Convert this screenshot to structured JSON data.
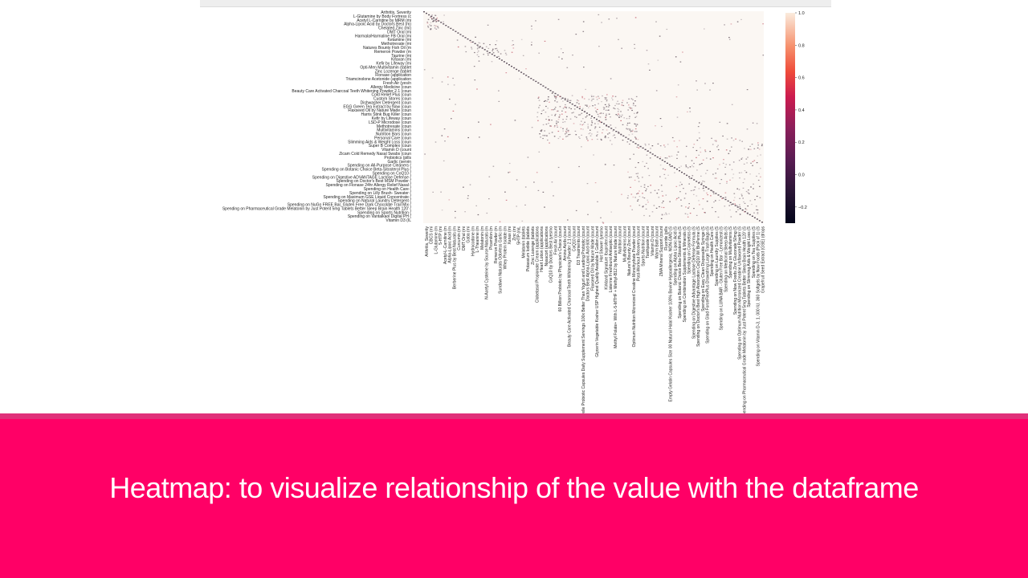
{
  "caption": {
    "text": "Heatmap: to visualize relationship of the value with the dataframe"
  },
  "colors": {
    "caption_band": "#ff0066",
    "caption_stripe": "#e0317a",
    "caption_text": "#ffffff"
  },
  "chart_data": {
    "type": "heatmap",
    "title": "",
    "colormap": "rocket",
    "colorbar": {
      "min": -0.3,
      "max": 1.0,
      "ticks": [
        "1.0",
        "0.8",
        "0.6",
        "0.4",
        "0.2",
        "0.0",
        "−0.2"
      ]
    },
    "row_labels": [
      "Arthritis, Severity",
      "L-Glutamine by Body Fortress (c",
      "Acetyl L-Carnitine by MRM (mi",
      "Alpha-Lipoic Acid by Doctors Best (m)",
      "Chelated Zinc (mi)",
      "DMT Oral (mi",
      "Harmala/Harmaline FB Oral (mi",
      "Ketamine (mi",
      "Methotrexate (mi",
      "Natures Bounty Fish Oil (m",
      "Remeron Powder (m",
      "Taurine (mi",
      "Kifaxan (mi",
      "Kefir by Lifeway (mi",
      "Opti-Men Multivitamin (tablet",
      "Zinc Lozenge (tablet",
      "Flonase (application",
      "Triamcinolone Acetonide (application",
      "Fresh Air (yes/n",
      "Allergy Medicine (coun",
      "Beauty Care Activated Charcoal Teeth Whitening Powder 2.1 (coun",
      "Cold Relief Plus (coun",
      "Custom Stores (coun",
      "Dishwasher Detergent (coun",
      "EGG Green Tea Extract by Now (coun",
      "Flaxseed Oil by Nature Made (coun",
      "Harris Stink Bug Killer (coun",
      "Kefir by Lifeway (coun",
      "LSD-P Microdose (coun",
      "Methotrexate (coun",
      "Multivitamins (coun",
      "Nutrition Bars (coun",
      "Personal Care (coun",
      "Slimming Aids & Weight Loss (coun",
      "Super B Complex (coun",
      "Vitamin D (count",
      "Zicam Cold Remedy Nasal Swabs (coun",
      "Probiotics (pills",
      "Garlic (servin",
      "Spending on All-Purpose Cleaners (",
      "Spending on Botanic Choice Beta-Sitosterol Plus (",
      "Spending on CoQ10 (",
      "Spending on Digestive ADVANTAGE Lactose Defense (",
      "Spending on Doctor's Best MSM Powder (",
      "Spending on Flonase 24hr Allergy Relief Nasal (",
      "Spending on Health Care (",
      "Spending on Lilly Brush- Sweater (",
      "Spending on Maximum GSE Liquid Concentrate (",
      "Spending on Natural Laundry Detergent (",
      "Spending on NuGo FREE Bar, Gluten Free Dark Chocolate Trail Mix (",
      "Spending on Pharmaceutical Grade Melatonin by Just Potent 5mg Tablets Better Sleep Brain Health 120' (",
      "Spending on Sports Nutrition (",
      "Spending on Vantalkaol Digital PH (",
      "Vitamin D3 (IL"
    ],
    "col_labels": [
      "Arthritis, Severity",
      "CBCS (mi",
      "L-Glutamine (m",
      "5-HTP (mi",
      "Acetyl-L-Carnitine (m",
      "Alpha-Lipoic Acid (m",
      "Berberine Plus by Best Naturals (m",
      "Curcumin (mi",
      "DMT Oral (mi",
      "Gaba (mi",
      "Hydrocodone (m",
      "L-Theanine (m",
      "Melatonin (m",
      "N-Acetyl Cysteine by Source Naturals (m",
      "Picamilon (m",
      "Remeron Powder (m",
      "Sundown Naturals Odorless Garlic (m",
      "Whey Protein Isolate (m",
      "Xanax (mi",
      "Zinc (mi",
      "5HTP (mL",
      "Melatonin (tablets",
      "Potassium Iodide (tablets",
      "Zinc Lozenge (tablets",
      "Clobetasol Propionate Cream (applications",
      "Heart Lotion (applications",
      "Nasacort (applications",
      "CoQ10 by Doctors Best (yes/no",
      "Fresh Air (count",
      "60 Billion Probiotic by Physician's Choice (count",
      "Amino Acids (count",
      "Beauty Care Activated Charcoal Teeth Whitening Powder 2.1 (count",
      "CoQ10 (count",
      "D3 Treatments (count",
      "Culturelle Probiotic Capsules Daily Supplement Servings 100x Better Than Yogurt and Leading Probiotic (count",
      "Doctors Best Alpha-Lipoic Acid 600 (count",
      "Flaxseed Oil by Nature Made (count",
      "Glycerin Vegetable Kosher USP Highest Quality Available 1 Gallon (count",
      "Hot Shower (yes/no",
      "Kirkland Signature Ibuprofen (count",
      "Listerine Freshburst Antiseptic (count",
      "Methyl Folate+ With L-5-MTHF + Methyl-B12 by Nature Made (count",
      "Nutrition (count",
      "Multivitamins (count",
      "Nature's Bounty Zinc (count",
      "Optimum Nutrition Micronized Creatine Monohydrate Powder (count",
      "Post-Workout Recovery (count",
      "Sports Nutrition (count",
      "Toothpaste (count",
      "Vitamin D (count",
      "Warm Bath (count",
      "ZMA Mineral Support (count",
      "Fluoride (pills",
      "Empty Gelatin Capsules Size 00 Natural Halal Kosher 100% Bovine Hypoallergenic, NON-GMO (S",
      "Spending on Alpha Lipoic Acid (S",
      "Spending on Botanic Choice Beta-Sitosterol Plus (S",
      "Spending on Combination Supplements & Minerals (S",
      "Spending on Cosmetics (S",
      "Spending on Digestive Advantage Lactose Defense Formula (S",
      "Spending on Doctor's Best High Absorption CoQ10 W/ BioPerine (S",
      "Spending on Easy Clean Disposable Syringe (S",
      "Spending on Glad ForceFlexPlus Drawstring Large Trash Bags (S",
      "Spending on Health Care (S",
      "Spending on Laundry Supplies (S",
      "Spending on LUNA BAR - Gluten Free Bar - Lemonzest (S",
      "Spending on Medicinal Sleep Aids (S",
      "Spending on Multivitamins (S",
      "Spending on Now Foods Zinc Gluconate 50mg (S",
      "Spending on Optimum Nutrition Micronized Creatine Unflavored Powder (S",
      "Spending on Pharmaceutical Grade Melatonin by Just Potent 5mg Tablets Better Sleep Brain Health 120' (S",
      "Spending on Slimming Aids & Weight Loss (S",
      "Spending on Tea Supplies (S",
      "Spending on Vitamin D-3, 1, 000 IU, 360 Softgels by Now Foods (Pack of 1) (S",
      "Grapefruit Seed Extract (GSE) (drops"
    ]
  }
}
